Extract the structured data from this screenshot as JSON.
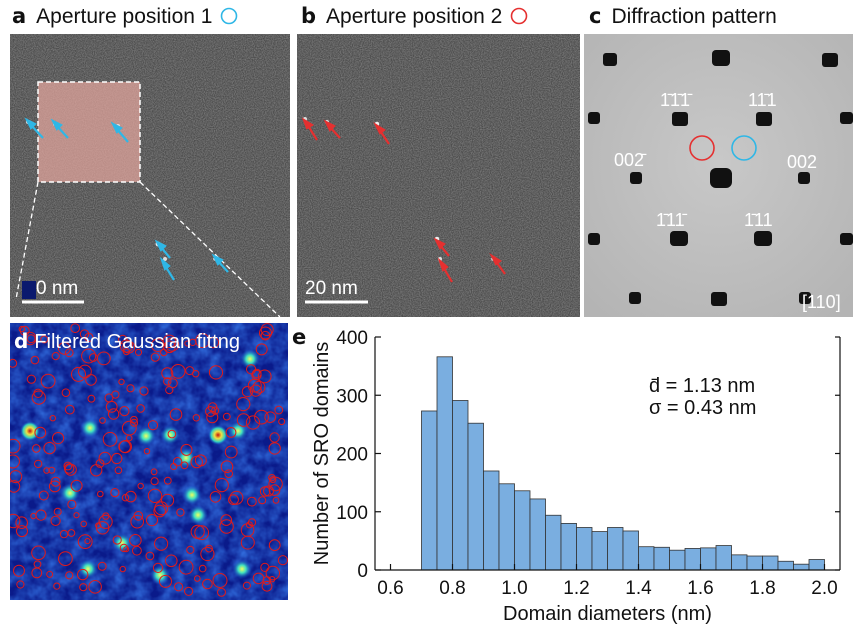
{
  "panels": {
    "a": {
      "letter": "a",
      "title": "Aperture position 1",
      "scalebar": "0 nm",
      "circle_color": "#2fb7e6",
      "arrow_color": "#2fb7e6"
    },
    "b": {
      "letter": "b",
      "title": "Aperture position 2",
      "scalebar": "20 nm",
      "circle_color": "#e53030",
      "arrow_color": "#e53030"
    },
    "c": {
      "letter": "c",
      "title": "Diffraction pattern",
      "spots": {
        "s1": "1̄1̄1̄",
        "s2": "11̄1",
        "s3": "002̄",
        "s4": "002",
        "s5": "1̄11̄",
        "s6": "1̄11"
      },
      "zone_axis": "[110]"
    },
    "d": {
      "letter": "d",
      "title": "Filtered Gaussian fittng",
      "circle_color": "#e01a1a"
    },
    "e": {
      "letter": "e"
    }
  },
  "chart_data": {
    "type": "bar",
    "xlabel": "Domain diameters (nm)",
    "ylabel": "Number of SRO domains",
    "xlim": [
      0.55,
      2.05
    ],
    "ylim": [
      0,
      400
    ],
    "xticks": [
      0.6,
      0.8,
      1.0,
      1.2,
      1.4,
      1.6,
      1.8,
      2.0
    ],
    "xtick_labels": [
      "0.6",
      "0.8",
      "1.0",
      "1.2",
      "1.4",
      "1.6",
      "1.8",
      "2.0"
    ],
    "yticks": [
      0,
      100,
      200,
      300,
      400
    ],
    "ytick_labels": [
      "0",
      "100",
      "200",
      "300",
      "400"
    ],
    "bin_width": 0.05,
    "bin_starts": [
      0.7,
      0.75,
      0.8,
      0.85,
      0.9,
      0.95,
      1.0,
      1.05,
      1.1,
      1.15,
      1.2,
      1.25,
      1.3,
      1.35,
      1.4,
      1.45,
      1.5,
      1.55,
      1.6,
      1.65,
      1.7,
      1.75,
      1.8,
      1.85,
      1.9,
      1.95
    ],
    "counts": [
      273,
      366,
      291,
      252,
      170,
      148,
      136,
      122,
      94,
      80,
      73,
      66,
      73,
      67,
      40,
      39,
      34,
      37,
      38,
      42,
      26,
      24,
      24,
      15,
      10,
      18
    ],
    "bar_color": "#7aaee0",
    "annotations": {
      "mean": "d̄ = 1.13 nm",
      "sigma": "σ = 0.43 nm"
    }
  }
}
